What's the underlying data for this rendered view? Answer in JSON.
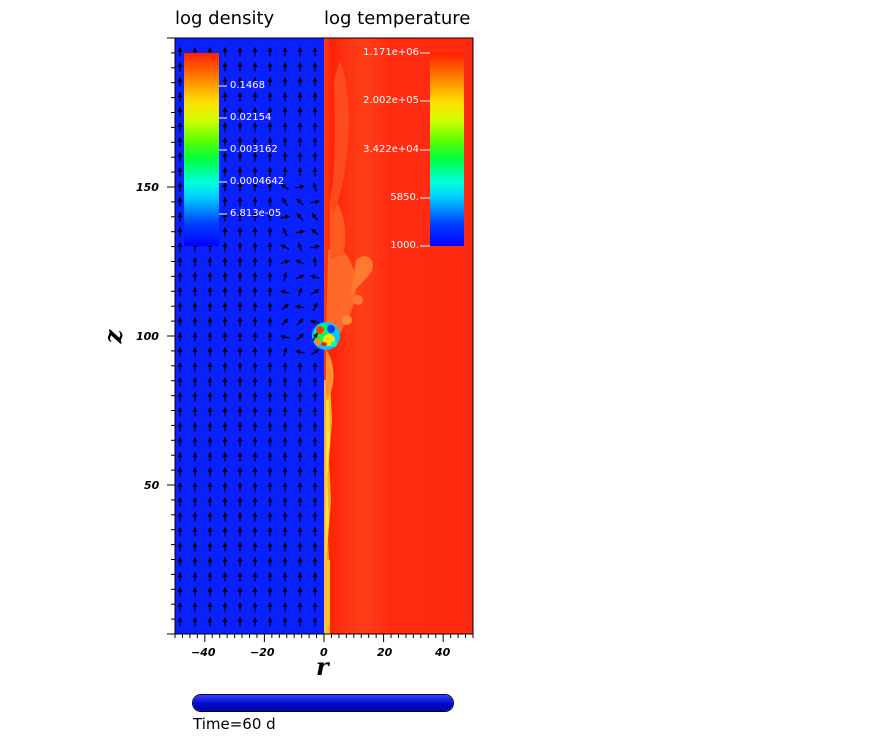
{
  "titles": {
    "left": "log density",
    "right": "log temperature"
  },
  "axes": {
    "x_label": "r",
    "z_label": "z",
    "x_ticks": [
      "−40",
      "−20",
      "0",
      "20",
      "40"
    ],
    "z_ticks": [
      "150",
      "100",
      "50"
    ]
  },
  "density_colorbar": {
    "labels": [
      "0.1468",
      "0.02154",
      "0.003162",
      "0.0004642",
      "6.813e-05"
    ]
  },
  "temperature_colorbar": {
    "labels": [
      "1.171e+06",
      "2.002e+05",
      "3.422e+04",
      "5850.",
      "1000."
    ]
  },
  "timeline": {
    "label": "Time=60 d",
    "progress": 1.0
  },
  "colors": {
    "density_bg": "#0a20ff",
    "temperature_bg": "#ff2a10",
    "arrow": "#000000",
    "timeline_fill": "#0a10ee"
  }
}
